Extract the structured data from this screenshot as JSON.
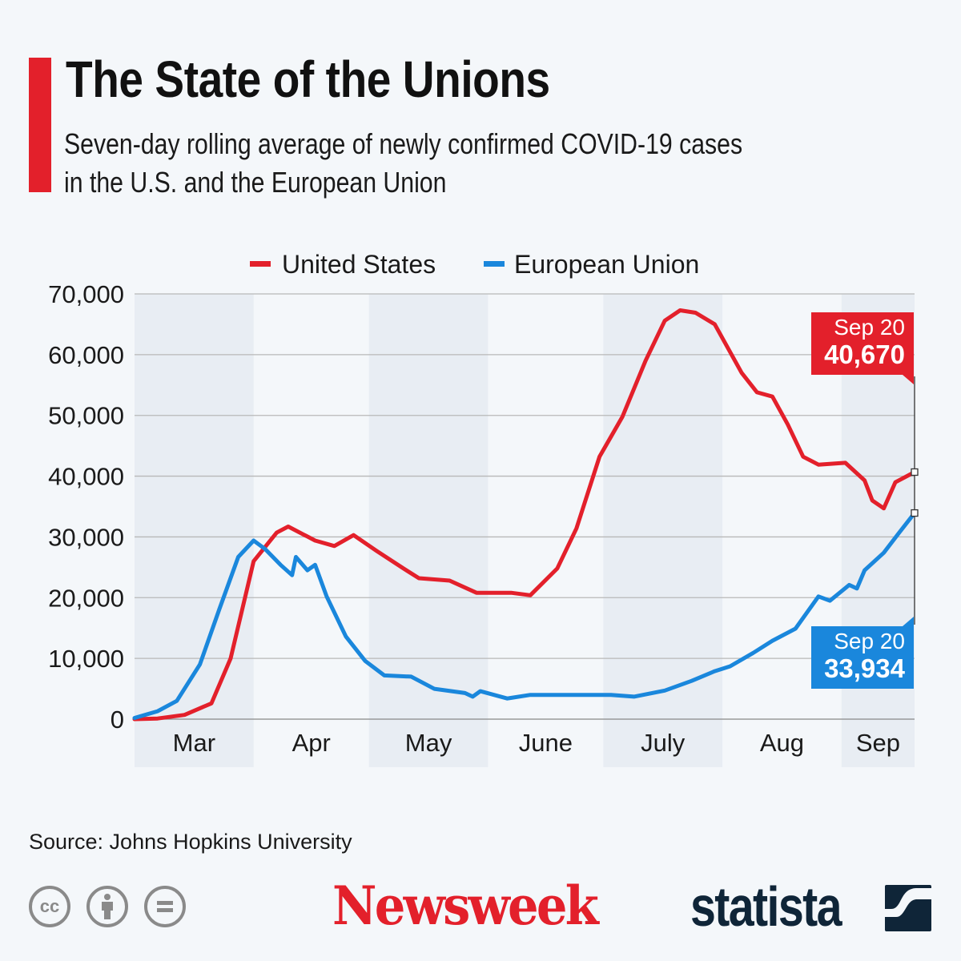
{
  "header": {
    "title": "The State of the Unions",
    "subtitle_line1": "Seven-day rolling average of newly confirmed COVID-19 cases",
    "subtitle_line2": "in the U.S. and the European Union"
  },
  "footer": {
    "source": "Source: Johns Hopkins University",
    "brand1": "Newsweek",
    "brand2": "statista",
    "license_icons": [
      "cc-icon",
      "by-attribution-icon",
      "no-derivatives-icon"
    ]
  },
  "colors": {
    "us": "#e3202b",
    "eu": "#1a87dc",
    "accent": "#e3202b",
    "band": "#e8edf3"
  },
  "chart_data": {
    "type": "line",
    "title": "",
    "xlabel": "",
    "ylabel": "",
    "ylim": [
      0,
      70000
    ],
    "yticks": [
      0,
      10000,
      20000,
      30000,
      40000,
      50000,
      60000,
      70000
    ],
    "ytick_labels": [
      "0",
      "10,000",
      "20,000",
      "30,000",
      "40,000",
      "50,000",
      "60,000",
      "70,000"
    ],
    "xlim": [
      "Mar 1",
      "Sep 20"
    ],
    "x_categories": [
      "Mar",
      "Apr",
      "May",
      "June",
      "July",
      "Aug",
      "Sep"
    ],
    "grid": "horizontal",
    "legend": "top",
    "series": [
      {
        "name": "United States",
        "color": "#e3202b",
        "x": [
          "Mar 1",
          "Mar 7",
          "Mar 14",
          "Mar 21",
          "Mar 26",
          "Apr 1",
          "Apr 7",
          "Apr 10",
          "Apr 17",
          "Apr 22",
          "Apr 27",
          "May 3",
          "May 10",
          "May 14",
          "May 22",
          "May 29",
          "Jun 7",
          "Jun 12",
          "Jun 19",
          "Jun 24",
          "Jun 30",
          "Jul 6",
          "Jul 12",
          "Jul 17",
          "Jul 21",
          "Jul 25",
          "Jul 30",
          "Aug 6",
          "Aug 10",
          "Aug 14",
          "Aug 18",
          "Aug 22",
          "Aug 26",
          "Sep 2",
          "Sep 7",
          "Sep 9",
          "Sep 12",
          "Sep 15",
          "Sep 20"
        ],
        "y": [
          0,
          100,
          700,
          2600,
          10000,
          26000,
          30700,
          31700,
          29400,
          28500,
          30300,
          27700,
          24800,
          23200,
          22800,
          20800,
          20800,
          20400,
          24800,
          31400,
          43200,
          49800,
          59000,
          65600,
          67300,
          66900,
          65000,
          57000,
          53800,
          53100,
          48500,
          43200,
          41900,
          42200,
          39300,
          36000,
          34700,
          39000,
          40670
        ]
      },
      {
        "name": "European Union",
        "color": "#1a87dc",
        "x": [
          "Mar 1",
          "Mar 7",
          "Mar 12",
          "Mar 18",
          "Mar 23",
          "Mar 28",
          "Apr 1",
          "Apr 4",
          "Apr 8",
          "Apr 11",
          "Apr 12",
          "Apr 15",
          "Apr 17",
          "Apr 20",
          "Apr 25",
          "Apr 30",
          "May 5",
          "May 12",
          "May 18",
          "May 26",
          "May 28",
          "May 30",
          "Jun 6",
          "Jun 12",
          "Jun 25",
          "Jul 3",
          "Jul 9",
          "Jul 17",
          "Jul 24",
          "Jul 30",
          "Aug 3",
          "Aug 9",
          "Aug 14",
          "Aug 20",
          "Aug 26",
          "Aug 29",
          "Sep 3",
          "Sep 5",
          "Sep 7",
          "Sep 12",
          "Sep 16",
          "Sep 20"
        ],
        "y": [
          200,
          1300,
          3000,
          9000,
          18000,
          26700,
          29400,
          28000,
          25400,
          23700,
          26700,
          24500,
          25400,
          20200,
          13600,
          9600,
          7200,
          7000,
          5000,
          4300,
          3700,
          4600,
          3400,
          4000,
          4000,
          4000,
          3700,
          4700,
          6300,
          7900,
          8700,
          10900,
          12900,
          14900,
          20200,
          19500,
          22100,
          21500,
          24500,
          27400,
          30700,
          33934
        ]
      }
    ],
    "annotations": [
      {
        "series": "United States",
        "date": "Sep 20",
        "value": "40,670"
      },
      {
        "series": "European Union",
        "date": "Sep 20",
        "value": "33,934"
      }
    ]
  }
}
